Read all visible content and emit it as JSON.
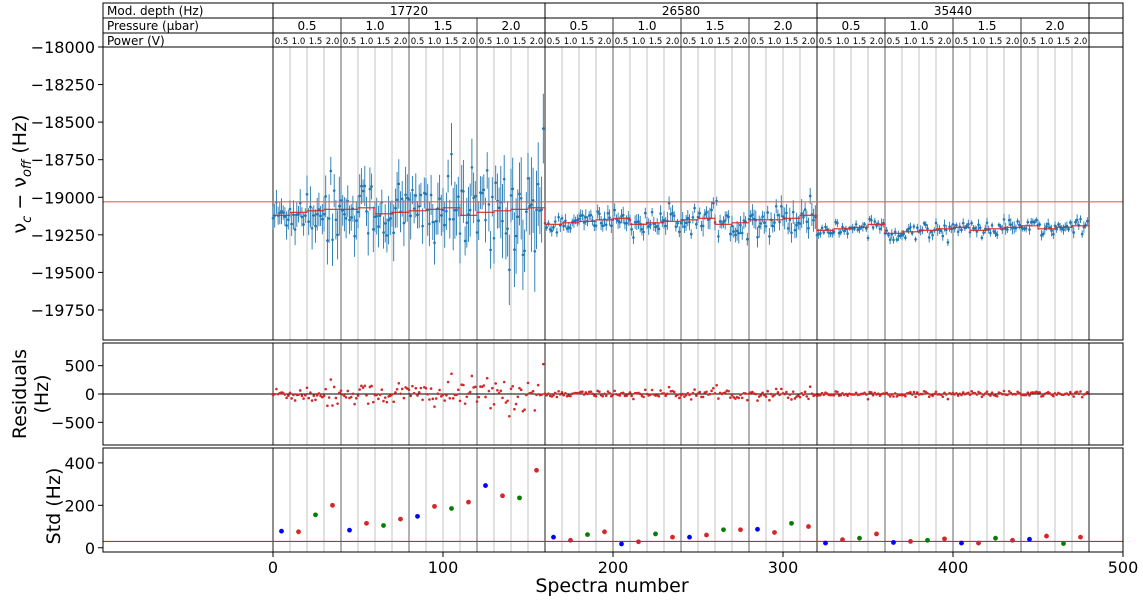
{
  "header_table": {
    "row_labels": [
      "Mod. depth (Hz)",
      "Pressure (µbar)",
      "Power (V)"
    ],
    "mod_depths": [
      "17720",
      "26580",
      "35440"
    ],
    "pressures": [
      "0.5",
      "1.0",
      "1.5",
      "2.0"
    ],
    "powers": [
      "0.5",
      "1.0",
      "1.5",
      "2.0"
    ]
  },
  "chart_data": [
    {
      "type": "scatter",
      "panel": "top",
      "title": "",
      "xlabel": "",
      "ylabel": "ν_c − ν_off (Hz)",
      "ylabel_parts": {
        "nu": "ν",
        "sub_c": "c",
        "minus": " − ",
        "sub_off": "off",
        "unit": " (Hz)"
      },
      "xlim": [
        -100,
        500
      ],
      "ylim": [
        -19950,
        -18000
      ],
      "yticks": [
        -19750,
        -19500,
        -19250,
        -19000,
        -18750,
        -18500,
        -18250,
        -18000
      ],
      "ytick_labels": [
        "−19750",
        "−19500",
        "−19250",
        "−19000",
        "−18750",
        "−18500",
        "−18250",
        "−18000"
      ],
      "reference_line_y": -19030,
      "series": [
        {
          "color": "#1f77b4",
          "x_range": [
            0,
            479
          ],
          "segment_means": [
            -19120,
            -19100,
            -19090,
            -19080,
            -19080,
            -19070,
            -19110,
            -19100,
            -19090,
            -19080,
            -19070,
            -19120,
            -19100,
            -19090,
            -19080,
            -19070,
            -19180,
            -19170,
            -19160,
            -19150,
            -19140,
            -19180,
            -19170,
            -19160,
            -19150,
            -19140,
            -19180,
            -19170,
            -19150,
            -19150,
            -19140,
            -19120,
            -19220,
            -19210,
            -19200,
            -19180,
            -19240,
            -19230,
            -19220,
            -19210,
            -19200,
            -19220,
            -19210,
            -19200,
            -19190,
            -19210,
            -19200,
            -19190
          ],
          "segment_errors": [
            70,
            80,
            110,
            140,
            100,
            110,
            120,
            140,
            120,
            140,
            150,
            150,
            160,
            180,
            200,
            230,
            35,
            35,
            40,
            40,
            40,
            45,
            40,
            45,
            50,
            55,
            45,
            50,
            55,
            60,
            60,
            70,
            25,
            25,
            25,
            30,
            25,
            25,
            25,
            30,
            25,
            30,
            25,
            30,
            25,
            30,
            25,
            30
          ]
        }
      ],
      "fit_line": {
        "color": "#d62728"
      }
    },
    {
      "type": "scatter",
      "panel": "middle",
      "xlabel": "",
      "ylabel": "Residuals (Hz)",
      "ylabel_lines": [
        "Residuals",
        "(Hz)"
      ],
      "xlim": [
        -100,
        500
      ],
      "ylim": [
        -900,
        900
      ],
      "yticks": [
        -500,
        0,
        500
      ],
      "ytick_labels": [
        "−500",
        "0",
        "500"
      ],
      "reference_line_y": 0,
      "series": [
        {
          "color": "#d62728"
        }
      ]
    },
    {
      "type": "scatter",
      "panel": "bottom",
      "xlabel": "Spectra number",
      "ylabel": "Std (Hz)",
      "xlim": [
        -100,
        500
      ],
      "ylim": [
        -20,
        470
      ],
      "xticks": [
        0,
        100,
        200,
        300,
        400,
        500
      ],
      "xtick_labels": [
        "0",
        "100",
        "200",
        "300",
        "400",
        "500"
      ],
      "yticks": [
        0,
        200,
        400
      ],
      "ytick_labels": [
        "0",
        "200",
        "400"
      ],
      "reference_line_y": 30,
      "reference_line_color": "#d62728",
      "series": [
        {
          "x": [
            5,
            15,
            25,
            35,
            45,
            55,
            65,
            75,
            85,
            95,
            105,
            115,
            125,
            135,
            145,
            155,
            165,
            175,
            185,
            195,
            205,
            215,
            225,
            235,
            245,
            255,
            265,
            275,
            285,
            295,
            305,
            315,
            325,
            335,
            345,
            355,
            365,
            375,
            385,
            395,
            405,
            415,
            425,
            435,
            445,
            455,
            465,
            475
          ],
          "y": [
            78,
            75,
            155,
            200,
            83,
            115,
            105,
            135,
            148,
            195,
            185,
            215,
            293,
            245,
            235,
            365,
            50,
            35,
            62,
            75,
            18,
            28,
            65,
            50,
            50,
            60,
            85,
            85,
            87,
            72,
            115,
            100,
            22,
            38,
            45,
            65,
            25,
            30,
            35,
            42,
            22,
            22,
            45,
            35,
            40,
            55,
            20,
            50
          ],
          "colors": [
            "#0000ff",
            "#d62728",
            "#008000",
            "#d62728",
            "#0000ff",
            "#d62728",
            "#008000",
            "#d62728",
            "#0000ff",
            "#d62728",
            "#008000",
            "#d62728",
            "#0000ff",
            "#d62728",
            "#008000",
            "#d62728",
            "#0000ff",
            "#d62728",
            "#008000",
            "#d62728",
            "#0000ff",
            "#d62728",
            "#008000",
            "#d62728",
            "#0000ff",
            "#d62728",
            "#008000",
            "#d62728",
            "#0000ff",
            "#d62728",
            "#008000",
            "#d62728",
            "#0000ff",
            "#d62728",
            "#008000",
            "#d62728",
            "#0000ff",
            "#d62728",
            "#008000",
            "#d62728",
            "#0000ff",
            "#d62728",
            "#008000",
            "#d62728",
            "#0000ff",
            "#d62728",
            "#008000",
            "#d62728"
          ]
        }
      ]
    }
  ]
}
